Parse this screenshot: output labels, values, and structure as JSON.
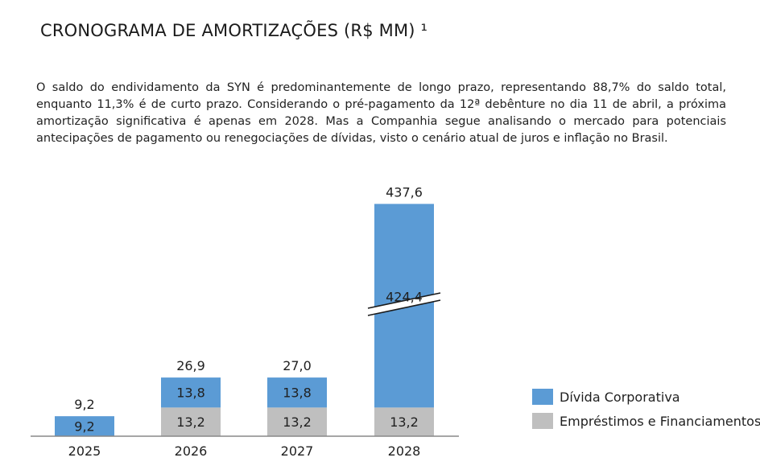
{
  "page": {
    "title": "CRONOGRAMA DE AMORTIZAÇÕES (R$ MM) ¹",
    "intro": "O saldo do endividamento da SYN é predominantemente de longo prazo, representando 88,7% do saldo total, enquanto 11,3% é de curto prazo. Considerando o pré-pagamento da 12ª debênture no dia 11 de abril, a próxima amortização significativa é apenas em 2028. Mas a Companhia segue analisando o mercado para potenciais antecipações de pagamento ou renegociações de dívidas, visto o cenário atual de juros e inflação no Brasil."
  },
  "chart_data": {
    "type": "bar",
    "stacked": true,
    "axis_break": true,
    "categories": [
      "2025",
      "2026",
      "2027",
      "2028"
    ],
    "series": [
      {
        "name": "Empréstimos e Financiamentos",
        "color": "#bfbfbf",
        "values": [
          0,
          13.2,
          13.2,
          13.2
        ],
        "labels": [
          "",
          "13,2",
          "13,2",
          "13,2"
        ]
      },
      {
        "name": "Dívida Corporativa",
        "color": "#5b9bd5",
        "values": [
          9.2,
          13.8,
          13.8,
          424.4
        ],
        "labels": [
          "9,2",
          "13,8",
          "13,8",
          "424,4"
        ]
      }
    ],
    "totals": [
      9.2,
      26.9,
      27.0,
      437.6
    ],
    "total_labels": [
      "9,2",
      "26,9",
      "27,0",
      "437,6"
    ],
    "legend_position": "right",
    "grid": false
  }
}
